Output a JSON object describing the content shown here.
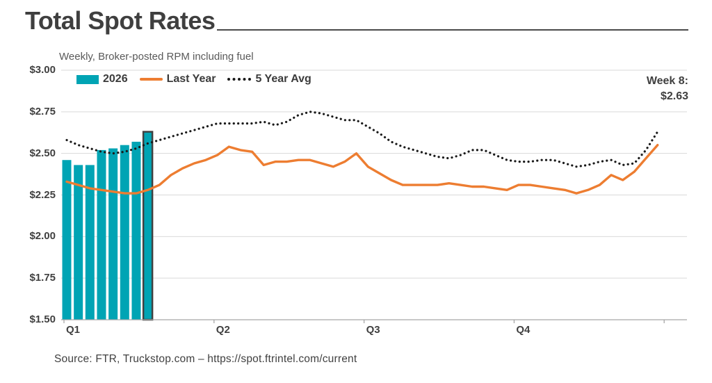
{
  "header": {
    "title": "Total Spot Rates",
    "subtitle": "Weekly, Broker-posted RPM including fuel"
  },
  "source": {
    "text": "Source: FTR, Truckstop.com – https://spot.ftrintel.com/current"
  },
  "colors": {
    "teal": "#00a4b4",
    "orange": "#ed7d31",
    "dotted": "#1a1a1a",
    "grid": "#d9d9d9",
    "axis": "#a6a6a6",
    "bar_outline": "#404040",
    "title_text": "#3f3f3f",
    "subtitle_text": "#595959"
  },
  "chart_data": {
    "type": "combo",
    "title": "Total Spot Rates",
    "subtitle": "Weekly, Broker-posted RPM including fuel",
    "ylim": [
      1.5,
      3.0
    ],
    "grid": "horizontal-only",
    "legend_position": "top-left-inside",
    "y_axis": {
      "min": 1.5,
      "max": 3.0,
      "tick_values": [
        3.0,
        2.75,
        2.5,
        2.25,
        2.0,
        1.75,
        1.5
      ],
      "tick_labels": [
        "$3.00",
        "$2.75",
        "$2.50",
        "$2.25",
        "$2.00",
        "$1.75",
        "$1.50"
      ]
    },
    "x_axis": {
      "labels": [
        "Q1",
        "Q2",
        "Q3",
        "Q4"
      ],
      "weeks_per_quarter": 13,
      "total_weeks": 52
    },
    "callout": {
      "label": "Week 8:",
      "value": "$2.63"
    },
    "series": [
      {
        "name": "2026",
        "type": "bar",
        "color": "#00a4b4",
        "weeks": [
          1,
          2,
          3,
          4,
          5,
          6,
          7,
          8
        ],
        "values": [
          2.46,
          2.43,
          2.43,
          2.52,
          2.53,
          2.55,
          2.57,
          2.63
        ],
        "highlight_week": 8
      },
      {
        "name": "Last Year",
        "type": "line",
        "style": "solid",
        "color": "#ed7d31",
        "values": [
          2.33,
          2.31,
          2.29,
          2.28,
          2.27,
          2.26,
          2.26,
          2.28,
          2.31,
          2.37,
          2.41,
          2.44,
          2.46,
          2.49,
          2.54,
          2.52,
          2.51,
          2.43,
          2.45,
          2.45,
          2.46,
          2.46,
          2.44,
          2.42,
          2.45,
          2.5,
          2.42,
          2.38,
          2.34,
          2.31,
          2.31,
          2.31,
          2.31,
          2.32,
          2.31,
          2.3,
          2.3,
          2.29,
          2.28,
          2.31,
          2.31,
          2.3,
          2.29,
          2.28,
          2.26,
          2.28,
          2.31,
          2.37,
          2.34,
          2.39,
          2.47,
          2.55
        ]
      },
      {
        "name": "5 Year Avg",
        "type": "line",
        "style": "dotted",
        "color": "#1a1a1a",
        "values": [
          2.58,
          2.55,
          2.53,
          2.51,
          2.5,
          2.51,
          2.53,
          2.56,
          2.58,
          2.6,
          2.62,
          2.64,
          2.66,
          2.68,
          2.68,
          2.68,
          2.68,
          2.69,
          2.67,
          2.69,
          2.73,
          2.75,
          2.74,
          2.72,
          2.7,
          2.7,
          2.66,
          2.62,
          2.57,
          2.54,
          2.52,
          2.5,
          2.48,
          2.47,
          2.49,
          2.52,
          2.52,
          2.49,
          2.46,
          2.45,
          2.45,
          2.46,
          2.46,
          2.44,
          2.42,
          2.43,
          2.45,
          2.46,
          2.43,
          2.44,
          2.52,
          2.63
        ]
      }
    ]
  }
}
